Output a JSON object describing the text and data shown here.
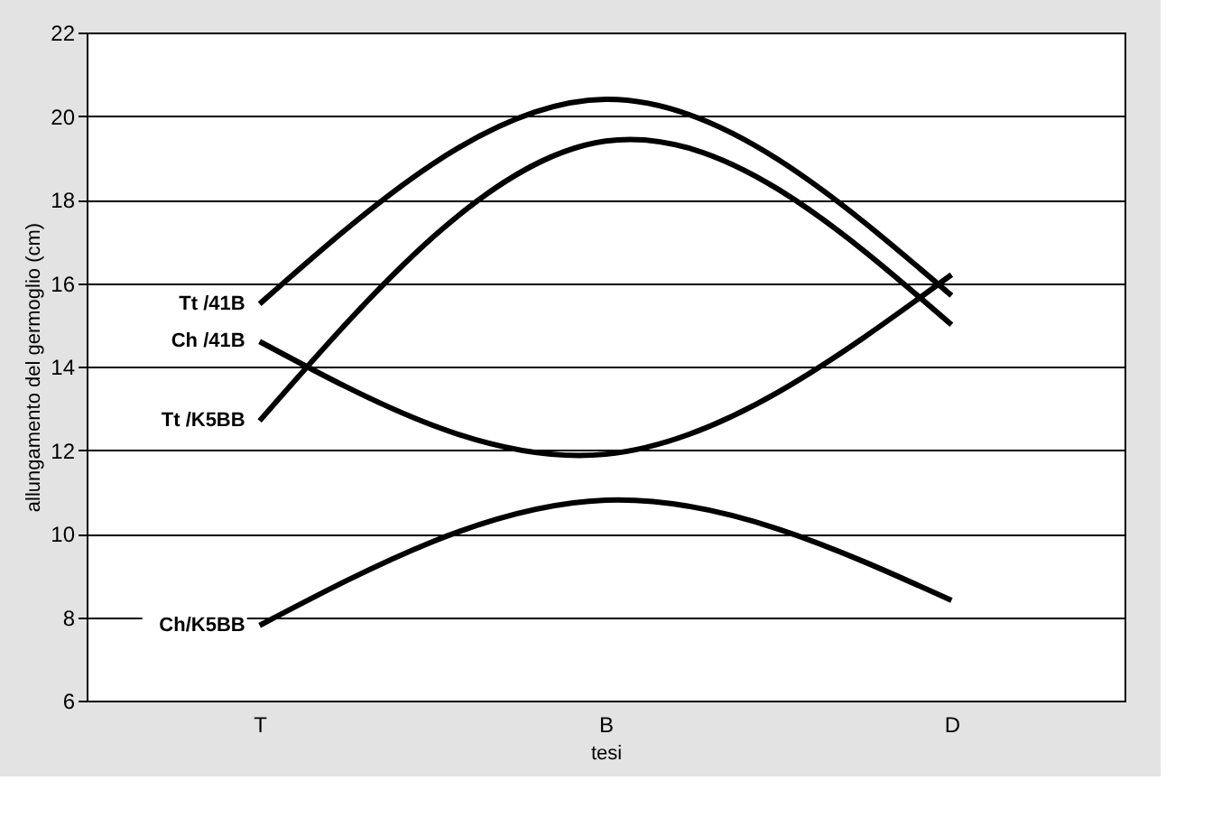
{
  "chart_data": {
    "type": "line",
    "xlabel": "tesi",
    "ylabel": "allungamento del germoglio (cm)",
    "categories": [
      "T",
      "B",
      "D"
    ],
    "series": [
      {
        "name": "Tt /41B",
        "color": "#000000",
        "values": [
          15.5,
          20.4,
          15.7
        ]
      },
      {
        "name": "Ch /41B",
        "color": "#000000",
        "values": [
          14.6,
          11.9,
          16.2
        ]
      },
      {
        "name": "Tt /K5BB",
        "color": "#000000",
        "values": [
          12.7,
          19.4,
          15.0
        ]
      },
      {
        "name": "Ch/K5BB",
        "color": "#000000",
        "values": [
          7.8,
          10.8,
          8.4
        ]
      }
    ],
    "ylim": [
      6,
      22
    ],
    "yticks": [
      6,
      8,
      10,
      12,
      14,
      16,
      18,
      20,
      22
    ],
    "grid": "y",
    "legend": false,
    "marker": "none",
    "line_style": "solid"
  }
}
